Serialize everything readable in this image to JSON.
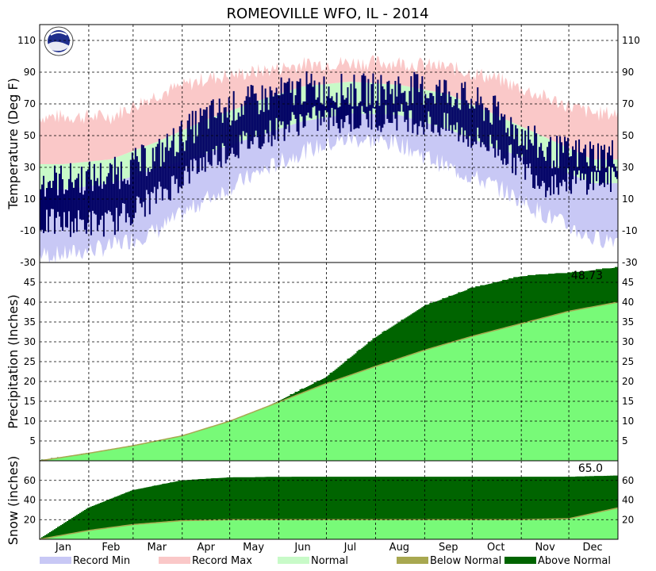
{
  "chart_data": {
    "type": "area",
    "title": "ROMEOVILLE  WFO, IL - 2014",
    "months": [
      "Jan",
      "Feb",
      "Mar",
      "Apr",
      "May",
      "Jun",
      "Jul",
      "Aug",
      "Sep",
      "Oct",
      "Nov",
      "Dec"
    ],
    "legend": [
      {
        "label": "Record Min",
        "color": "#c8c8f5"
      },
      {
        "label": "Record Max",
        "color": "#fac8c8"
      },
      {
        "label": "Normal",
        "color": "#c8fac8"
      },
      {
        "label": "Below Normal",
        "color": "#a8a850"
      },
      {
        "label": "Above Normal",
        "color": "#006400"
      }
    ],
    "colors": {
      "record_min": "#c8c8f5",
      "record_max": "#fac8c8",
      "normal": "#c8fac8",
      "observed": "#000064",
      "precip_normal": "#78fa78",
      "above": "#006400",
      "below": "#a8a850"
    },
    "grid": true,
    "panels": [
      {
        "id": "temperature",
        "ylabel": "Temperature (Deg F)",
        "ylim": [
          -30,
          120
        ],
        "yticks": [
          -30,
          -10,
          10,
          30,
          50,
          70,
          90,
          110
        ],
        "series": {
          "record_max_month": [
            62,
            62,
            76,
            86,
            90,
            95,
            96,
            96,
            93,
            86,
            74,
            64
          ],
          "normal_high_month": [
            32,
            35,
            46,
            60,
            71,
            81,
            84,
            82,
            76,
            63,
            49,
            35
          ],
          "normal_low_month": [
            16,
            20,
            29,
            39,
            49,
            59,
            64,
            63,
            54,
            42,
            32,
            20
          ],
          "record_min_month": [
            -25,
            -20,
            -10,
            10,
            25,
            40,
            48,
            45,
            30,
            18,
            0,
            -15
          ],
          "observed_high_month": [
            22,
            25,
            38,
            62,
            72,
            80,
            78,
            80,
            78,
            64,
            40,
            38
          ],
          "observed_low_month": [
            -5,
            -5,
            12,
            35,
            48,
            60,
            60,
            62,
            55,
            42,
            20,
            22
          ]
        }
      },
      {
        "id": "precipitation",
        "ylabel": "Precipitation (Inches)",
        "ylim": [
          0,
          50
        ],
        "yticks": [
          5,
          10,
          15,
          20,
          25,
          30,
          35,
          40,
          45
        ],
        "total_label": "48.73",
        "series": {
          "observed_cum_month_end": [
            1.8,
            3.7,
            6.0,
            9.2,
            15.0,
            21.0,
            31.0,
            39.0,
            43.5,
            46.5,
            47.3,
            48.73
          ],
          "normal_cum_month_end": [
            1.9,
            3.8,
            6.3,
            10.0,
            14.8,
            19.5,
            23.8,
            27.9,
            31.4,
            34.6,
            37.7,
            40.0
          ]
        }
      },
      {
        "id": "snow",
        "ylabel": "Snow (inches)",
        "ylim": [
          0,
          80
        ],
        "yticks": [
          20,
          40,
          60
        ],
        "total_label": "65.0",
        "series": {
          "observed_cum_month_end": [
            32.0,
            50.0,
            60.0,
            63.0,
            63.5,
            63.5,
            63.5,
            63.5,
            63.5,
            63.5,
            63.5,
            65.0
          ],
          "normal_cum_month_end": [
            9.0,
            15.0,
            19.0,
            20.0,
            20.0,
            20.0,
            20.0,
            20.0,
            20.0,
            20.0,
            21.0,
            32.0
          ]
        }
      }
    ]
  }
}
